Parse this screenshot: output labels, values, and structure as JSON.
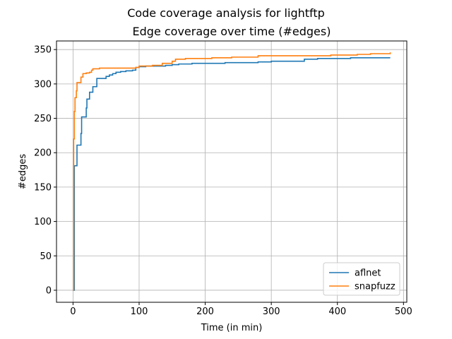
{
  "chart_data": {
    "type": "line",
    "suptitle": "Code coverage analysis for lightftp",
    "title": "Edge coverage over time (#edges)",
    "xlabel": "Time (in min)",
    "ylabel": "#edges",
    "xlim": [
      -25,
      505
    ],
    "ylim": [
      -17.5,
      362.5
    ],
    "xticks": [
      0,
      100,
      200,
      300,
      400,
      500
    ],
    "yticks": [
      0,
      50,
      100,
      150,
      200,
      250,
      300,
      350
    ],
    "grid": true,
    "legend_position": "lower-right",
    "step": true,
    "series": [
      {
        "name": "aflnet",
        "color": "#1f77b4",
        "points": [
          [
            0,
            0
          ],
          [
            2,
            181
          ],
          [
            5,
            181
          ],
          [
            6,
            211
          ],
          [
            9,
            211
          ],
          [
            12,
            228
          ],
          [
            13,
            252
          ],
          [
            18,
            252
          ],
          [
            20,
            265
          ],
          [
            21,
            278
          ],
          [
            24,
            278
          ],
          [
            25,
            288
          ],
          [
            28,
            288
          ],
          [
            30,
            296
          ],
          [
            35,
            296
          ],
          [
            36,
            308
          ],
          [
            45,
            308
          ],
          [
            50,
            311
          ],
          [
            55,
            313
          ],
          [
            60,
            315
          ],
          [
            65,
            317
          ],
          [
            72,
            318
          ],
          [
            80,
            319
          ],
          [
            90,
            320
          ],
          [
            95,
            324
          ],
          [
            100,
            325
          ],
          [
            110,
            326
          ],
          [
            140,
            327
          ],
          [
            150,
            328
          ],
          [
            160,
            329
          ],
          [
            180,
            330
          ],
          [
            230,
            331
          ],
          [
            280,
            332
          ],
          [
            300,
            333
          ],
          [
            350,
            336
          ],
          [
            370,
            337
          ],
          [
            400,
            337
          ],
          [
            420,
            338
          ],
          [
            480,
            338
          ]
        ]
      },
      {
        "name": "snapfuzz",
        "color": "#ff7f0e",
        "points": [
          [
            0,
            0
          ],
          [
            1,
            220
          ],
          [
            2,
            260
          ],
          [
            3,
            280
          ],
          [
            5,
            290
          ],
          [
            6,
            302
          ],
          [
            10,
            302
          ],
          [
            12,
            310
          ],
          [
            15,
            315
          ],
          [
            20,
            316
          ],
          [
            25,
            317
          ],
          [
            28,
            320
          ],
          [
            30,
            322
          ],
          [
            40,
            323
          ],
          [
            60,
            323
          ],
          [
            95,
            324
          ],
          [
            100,
            326
          ],
          [
            120,
            327
          ],
          [
            135,
            330
          ],
          [
            150,
            333
          ],
          [
            155,
            336
          ],
          [
            170,
            337
          ],
          [
            210,
            338
          ],
          [
            240,
            339
          ],
          [
            280,
            341
          ],
          [
            350,
            341
          ],
          [
            390,
            342
          ],
          [
            430,
            343
          ],
          [
            450,
            344
          ],
          [
            480,
            346
          ]
        ]
      }
    ]
  }
}
